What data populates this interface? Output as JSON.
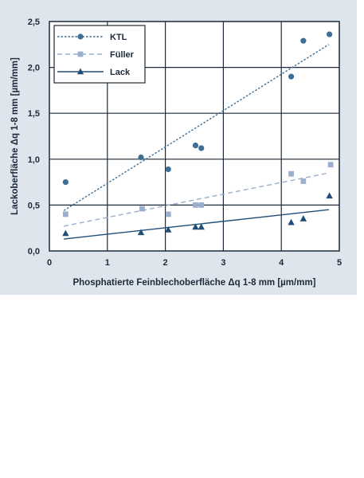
{
  "chart_data": {
    "type": "scatter",
    "xlabel": "Phosphatierte Feinblechoberfläche Δq 1-8 mm [µm/mm]",
    "ylabel": "Lackoberfläche Δq 1-8 mm [µm/mm]",
    "xlim": [
      0,
      5
    ],
    "ylim": [
      0,
      2.5
    ],
    "xticks": [
      "0",
      "1",
      "2",
      "3",
      "4",
      "5"
    ],
    "yticks": [
      "0,0",
      "0,5",
      "1,0",
      "1,5",
      "2,0",
      "2,5"
    ],
    "grid": true,
    "legend_position": "top-left",
    "series": [
      {
        "name": "KTL",
        "marker": "circle",
        "color": "#3d6e96",
        "line_style": "dotted",
        "points": [
          [
            0.28,
            0.75
          ],
          [
            1.58,
            1.02
          ],
          [
            2.05,
            0.89
          ],
          [
            2.52,
            1.15
          ],
          [
            2.62,
            1.12
          ],
          [
            4.17,
            1.9
          ],
          [
            4.38,
            2.29
          ],
          [
            4.83,
            2.36
          ]
        ],
        "trend": [
          [
            0.25,
            0.44
          ],
          [
            4.82,
            2.25
          ]
        ]
      },
      {
        "name": "Füller",
        "marker": "square",
        "color": "#9aaecd",
        "line_style": "dashed",
        "points": [
          [
            0.28,
            0.4
          ],
          [
            1.6,
            0.46
          ],
          [
            2.05,
            0.4
          ],
          [
            2.52,
            0.5
          ],
          [
            2.62,
            0.5
          ],
          [
            4.17,
            0.84
          ],
          [
            4.38,
            0.76
          ],
          [
            4.85,
            0.94
          ]
        ],
        "trend": [
          [
            0.25,
            0.27
          ],
          [
            4.82,
            0.85
          ]
        ]
      },
      {
        "name": "Lack",
        "marker": "triangle",
        "color": "#204e78",
        "line_style": "solid",
        "points": [
          [
            0.28,
            0.19
          ],
          [
            1.58,
            0.2
          ],
          [
            2.05,
            0.23
          ],
          [
            2.52,
            0.26
          ],
          [
            2.62,
            0.26
          ],
          [
            4.17,
            0.31
          ],
          [
            4.38,
            0.35
          ],
          [
            4.83,
            0.6
          ]
        ],
        "trend": [
          [
            0.25,
            0.13
          ],
          [
            4.82,
            0.45
          ]
        ]
      }
    ]
  }
}
